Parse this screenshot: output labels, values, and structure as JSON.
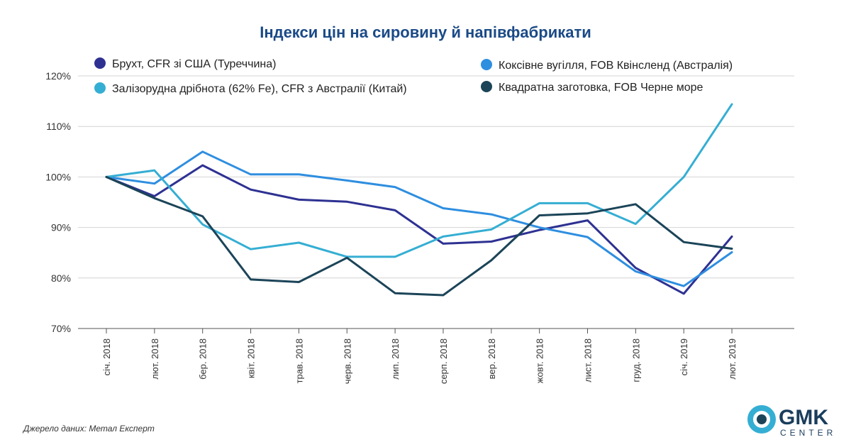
{
  "chart_data": {
    "type": "line",
    "title": "Індекси цін на сировину й напівфабрикати",
    "xlabel": "",
    "ylabel": "",
    "categories": [
      "січ. 2018",
      "лют. 2018",
      "бер. 2018",
      "квіт. 2018",
      "трав. 2018",
      "черв. 2018",
      "лип. 2018",
      "серп. 2018",
      "вер. 2018",
      "жовт. 2018",
      "лист. 2018",
      "груд. 2018",
      "січ. 2019",
      "лют. 2019"
    ],
    "ylim": [
      70,
      120
    ],
    "yticks": [
      70,
      80,
      90,
      100,
      110,
      120
    ],
    "ytick_labels": [
      "70%",
      "80%",
      "90%",
      "100%",
      "110%",
      "120%"
    ],
    "grid": "horizontal",
    "legend_position": "top",
    "series": [
      {
        "name": "Брухт, CFR зі США (Туреччина)",
        "color": "#2e3192",
        "values": [
          100,
          96.2,
          102.3,
          97.5,
          95.5,
          95.1,
          93.4,
          86.8,
          87.2,
          89.5,
          91.4,
          82.0,
          76.9,
          88.2
        ]
      },
      {
        "name": "Коксівне вугілля, FOB Квінсленд (Австралія)",
        "color": "#2e8ee0",
        "values": [
          100,
          98.7,
          105.0,
          100.5,
          100.5,
          99.3,
          98.0,
          93.8,
          92.6,
          90.0,
          88.1,
          81.3,
          78.4,
          85.1
        ]
      },
      {
        "name": "Залізорудна дрібнота (62% Fe), CFR з Австралії (Китай)",
        "color": "#35aed3",
        "values": [
          100,
          101.3,
          90.6,
          85.7,
          87.0,
          84.2,
          84.2,
          88.2,
          89.6,
          94.8,
          94.8,
          90.7,
          100,
          114.4
        ]
      },
      {
        "name": "Квадратна заготовка, FOB Черне море",
        "color": "#1b4458",
        "values": [
          100,
          95.8,
          92.2,
          79.7,
          79.2,
          84.0,
          77.0,
          76.6,
          83.5,
          92.4,
          92.8,
          94.6,
          87.1,
          85.8
        ]
      }
    ]
  },
  "source": "Джерело даних: Метал Експерт",
  "logo": {
    "main": "GMK",
    "sub": "CENTER",
    "colors": {
      "ring": "#35aed3",
      "core": "#1b4458",
      "text": "#1a3d5c"
    }
  }
}
